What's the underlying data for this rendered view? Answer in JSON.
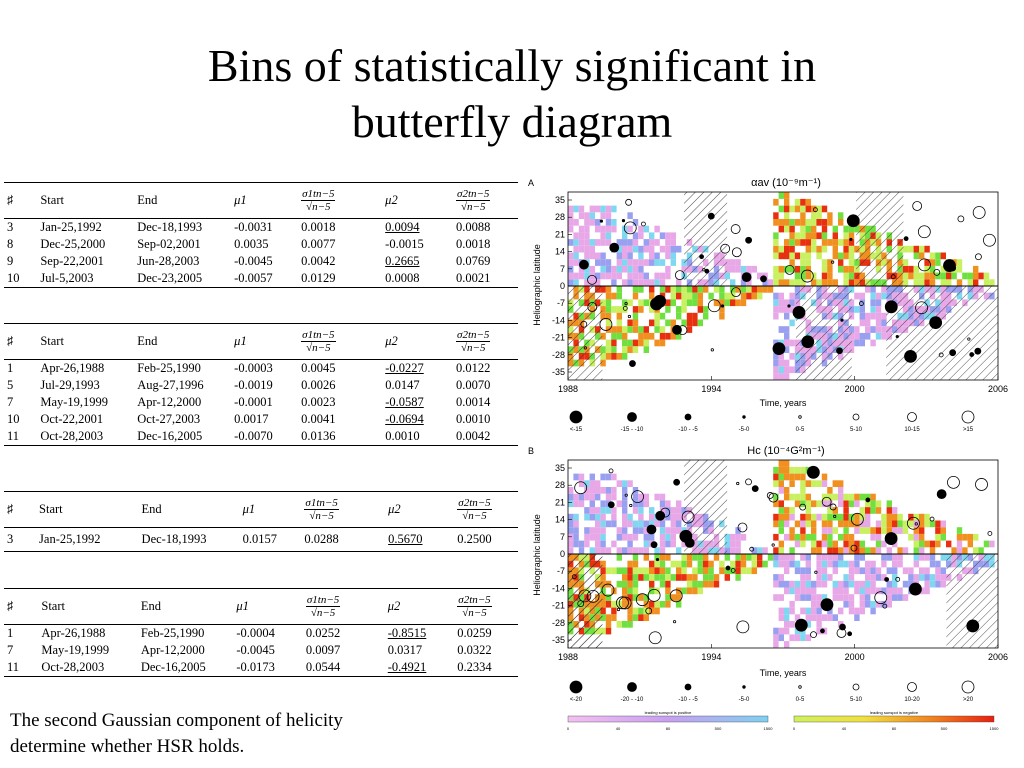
{
  "slide": {
    "title_line1": "Bins of statistically significant in",
    "title_line2": "butterfly diagram",
    "caption_line1": "The second Gaussian component of helicity",
    "caption_line2": "determine whether HSR holds."
  },
  "table_headers": {
    "num": "♯",
    "start": "Start",
    "end": "End",
    "mu1": "μ1",
    "mu2": "μ2",
    "sig1_num": "σ1tn−5",
    "sig1_den": "√n−5",
    "sig2_num": "σ2tn−5",
    "sig2_den": "√n−5"
  },
  "tables": [
    {
      "rows": [
        [
          "3",
          "Jan-25,1992",
          "Dec-18,1993",
          "-0.0031",
          "0.0018",
          "0.0094",
          "0.0088"
        ],
        [
          "8",
          "Dec-25,2000",
          "Sep-02,2001",
          "0.0035",
          "0.0077",
          "-0.0015",
          "0.0018"
        ],
        [
          "9",
          "Sep-22,2001",
          "Jun-28,2003",
          "-0.0045",
          "0.0042",
          "0.2665",
          "0.0769"
        ],
        [
          "10",
          "Jul-5,2003",
          "Dec-23,2005",
          "-0.0057",
          "0.0129",
          "0.0008",
          "0.0021"
        ]
      ]
    },
    {
      "rows": [
        [
          "1",
          "Apr-26,1988",
          "Feb-25,1990",
          "-0.0003",
          "0.0045",
          "-0.0227",
          "0.0122"
        ],
        [
          "5",
          "Jul-29,1993",
          "Aug-27,1996",
          "-0.0019",
          "0.0026",
          "0.0147",
          "0.0070"
        ],
        [
          "7",
          "May-19,1999",
          "Apr-12,2000",
          "-0.0001",
          "0.0023",
          "-0.0587",
          "0.0014"
        ],
        [
          "10",
          "Oct-22,2001",
          "Oct-27,2003",
          "0.0017",
          "0.0041",
          "-0.0694",
          "0.0010"
        ],
        [
          "11",
          "Oct-28,2003",
          "Dec-16,2005",
          "-0.0070",
          "0.0136",
          "0.0010",
          "0.0042"
        ]
      ]
    },
    {
      "rows": [
        [
          "3",
          "Jan-25,1992",
          "Dec-18,1993",
          "0.0157",
          "0.0288",
          "0.5670",
          "0.2500"
        ]
      ]
    },
    {
      "rows": [
        [
          "1",
          "Apr-26,1988",
          "Feb-25,1990",
          "-0.0004",
          "0.0252",
          "-0.8515",
          "0.0259"
        ],
        [
          "7",
          "May-19,1999",
          "Apr-12,2000",
          "-0.0045",
          "0.0097",
          "0.0317",
          "0.0322"
        ],
        [
          "11",
          "Oct-28,2003",
          "Dec-16,2005",
          "-0.0173",
          "0.0544",
          "-0.4921",
          "0.2334"
        ]
      ]
    }
  ],
  "figure": {
    "panelA": {
      "letter": "A",
      "title": "αav (10⁻⁹m⁻¹)",
      "ylabel": "Heliographic latitude",
      "xlabel": "Time, years",
      "legend": [
        "<-15",
        "-15 - -10",
        "-10 - -5",
        "-5-0",
        "0-5",
        "5-10",
        "10-15",
        ">15"
      ]
    },
    "panelB": {
      "letter": "B",
      "title": "Hc (10⁻⁴G²m⁻¹)",
      "ylabel": "Heliographic latitude",
      "xlabel": "Time, years",
      "legend": [
        "<-20",
        "-20 - -10",
        "-10 - -5",
        "-5-0",
        "0-5",
        "5-10",
        "10-20",
        ">20"
      ]
    },
    "yticks": [
      "35",
      "28",
      "21",
      "14",
      "7",
      "0",
      "-7",
      "-14",
      "-21",
      "-28",
      "-35"
    ],
    "xticks": [
      "1988",
      "1994",
      "2000",
      "2006"
    ],
    "colorbar_left_label": "leading sunspot is positive",
    "colorbar_right_label": "leading sunspot is negative",
    "colorbar_ticks": [
      "0",
      "40",
      "80",
      "500",
      "1500"
    ],
    "colors": {
      "pink": "#e8a8e8",
      "blue": "#9aa0f0",
      "cyan": "#80d8f0",
      "yellowgreen": "#c8f060",
      "green": "#70e040",
      "orange": "#f09020",
      "red": "#e83010"
    }
  }
}
